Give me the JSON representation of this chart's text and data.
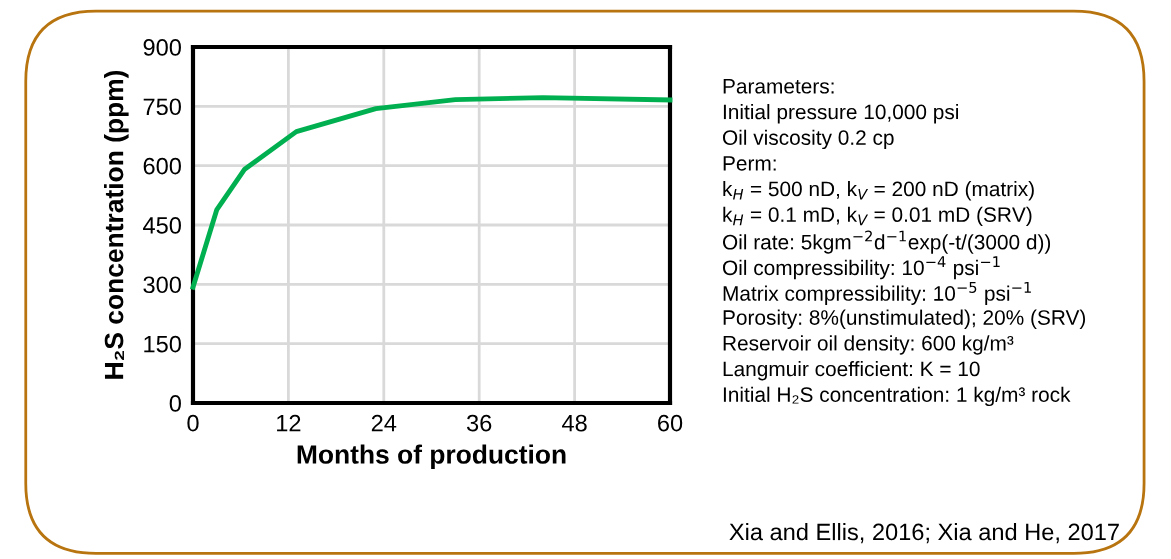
{
  "chart_data": {
    "type": "line",
    "xlabel": "Months of production",
    "ylabel": "H₂S concentration (ppm)",
    "x": [
      0,
      3,
      6.5,
      13,
      23,
      33,
      44,
      60
    ],
    "series": [
      {
        "color": "#00b050",
        "values": [
          293,
          489,
          591,
          686,
          744,
          767,
          772,
          766
        ]
      }
    ],
    "xlim": [
      0,
      60
    ],
    "xticks": [
      0,
      12,
      24,
      36,
      48,
      60
    ],
    "ylim": [
      0,
      900
    ],
    "yticks": [
      0,
      150,
      300,
      450,
      600,
      750,
      900
    ],
    "grid": true,
    "legend": false,
    "marker": "none",
    "line_style": "solid",
    "annotations": [
      "Parameters:",
      "Initial pressure 10,000 psi",
      "Oil viscosity 0.2 cp",
      "Perm:",
      "k$_{H}$ = 500 nD, k$_{V}$ = 200 nD (matrix)",
      "k$_{H}$ = 0.1 mD, k$_{V}$ = 0.01 mD (SRV)",
      "Oil rate: 5kgm$^{−2}$d$^{−1}$exp(-t/(3000 d))",
      "Oil compressibility: 10$^{−4}$ psi$^{−1}$",
      "Matrix compressibility: 10$^{−5}$ psi$^{−1}$",
      "Porosity: 8%(unstimulated); 20% (SRV)",
      "Reservoir oil density: 600 kg/m³",
      "Langmuir coefficient: K = 10",
      "Initial H₂S concentration: 1 kg/m³ rock",
      "Xia and Ellis, 2016; Xia and He, 2017"
    ]
  }
}
